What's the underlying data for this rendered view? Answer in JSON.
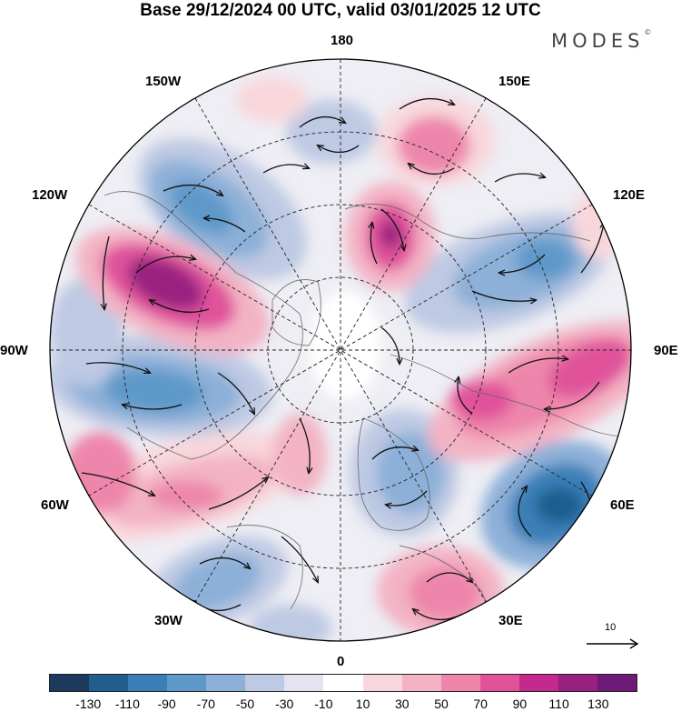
{
  "header": {
    "title": "Base 29/12/2024 00 UTC, valid 03/01/2025 12 UTC",
    "brand": "MODES",
    "brand_mark": "©"
  },
  "map": {
    "projection": "north-polar-stereographic",
    "longitude_labels": {
      "top": "180",
      "top_left": "150W",
      "top_right": "150E",
      "upper_left": "120W",
      "upper_right": "120E",
      "left": "90W",
      "right": "90E",
      "lower_left": "60W",
      "lower_right": "60E",
      "bottom_left": "30W",
      "bottom_right": "30E",
      "bottom": "0"
    },
    "reference_vector": "10",
    "graticule": "dashed",
    "coastlines": true,
    "wind_arrows": true
  },
  "colorbar": {
    "ticks": [
      "-130",
      "-110",
      "-90",
      "-70",
      "-50",
      "-30",
      "-10",
      "10",
      "30",
      "50",
      "70",
      "90",
      "110",
      "130"
    ],
    "colors": [
      "#1b3a5c",
      "#1f5e8f",
      "#3a7fb8",
      "#5f99c9",
      "#8db0d8",
      "#bec9e3",
      "#e4e4f0",
      "#ffffff",
      "#f8d7dc",
      "#f3b3c4",
      "#ee86ab",
      "#e0539b",
      "#c42a8d",
      "#992080",
      "#6e1a78"
    ]
  }
}
